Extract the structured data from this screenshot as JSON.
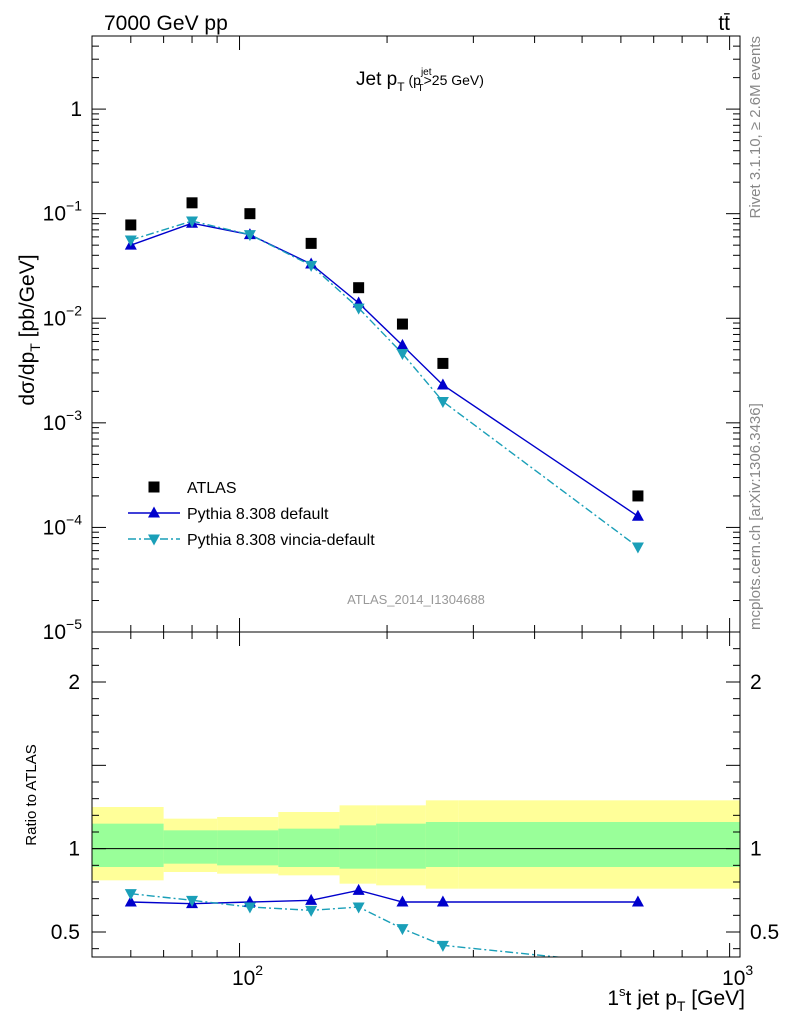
{
  "header": {
    "left": "7000 GeV pp",
    "right": "tt̄"
  },
  "side_labels": {
    "rivet": "Rivet 3.1.10, ≥ 2.6M events",
    "mcplots": "mcplots.cern.ch [arXiv:1306.3436]"
  },
  "chart_data": [
    {
      "type": "scatter",
      "panel": "main",
      "title": "Jet p_T (p_T^jet>25 GeV)",
      "ylabel": "dσ/dp_T [pb/GeV]",
      "xlabel": "",
      "xscale": "log",
      "yscale": "log",
      "xlim": [
        50,
        1050
      ],
      "ylim": [
        1e-05,
        5
      ],
      "y_tick_labels": [
        "10^-5",
        "10^-4",
        "10^-3",
        "10^-2",
        "10^-1",
        "1"
      ],
      "x": [
        60,
        80,
        105,
        140,
        175,
        215,
        260,
        650
      ],
      "series": [
        {
          "name": "ATLAS",
          "marker": "square",
          "color": "#000000",
          "line": "none",
          "values": [
            0.078,
            0.127,
            0.1,
            0.052,
            0.0196,
            0.0088,
            0.0037,
            0.0002
          ]
        },
        {
          "name": "Pythia 8.308 default",
          "marker": "triangle-up",
          "color": "#0000cc",
          "line": "solid",
          "values": [
            0.05,
            0.081,
            0.063,
            0.033,
            0.014,
            0.0055,
            0.0023,
            0.000128
          ]
        },
        {
          "name": "Pythia 8.308 vincia-default",
          "marker": "triangle-down",
          "color": "#1a9fb8",
          "line": "dashdot",
          "values": [
            0.056,
            0.085,
            0.063,
            0.032,
            0.0125,
            0.0046,
            0.0016,
            6.5e-05
          ]
        }
      ],
      "annotation": "ATLAS_2014_I1304688",
      "legend_position": "bottom-left"
    },
    {
      "type": "line",
      "panel": "ratio",
      "ylabel": "Ratio to ATLAS",
      "xlabel": "1st jet p_T [GeV]",
      "xscale": "log",
      "xlim": [
        50,
        1050
      ],
      "ylim": [
        0.35,
        2.3
      ],
      "y_tick_labels": [
        "0.5",
        "1",
        "2"
      ],
      "x_tick_labels": [
        "10^2",
        "10^3"
      ],
      "x": [
        60,
        80,
        105,
        140,
        175,
        215,
        260,
        650
      ],
      "bins": [
        [
          50,
          70
        ],
        [
          70,
          90
        ],
        [
          90,
          120
        ],
        [
          120,
          160
        ],
        [
          160,
          190
        ],
        [
          190,
          240
        ],
        [
          240,
          280
        ],
        [
          280,
          1050
        ]
      ],
      "band_yellow": [
        [
          0.81,
          1.25
        ],
        [
          0.86,
          1.18
        ],
        [
          0.85,
          1.19
        ],
        [
          0.84,
          1.22
        ],
        [
          0.79,
          1.26
        ],
        [
          0.78,
          1.26
        ],
        [
          0.76,
          1.29
        ],
        [
          0.76,
          1.29
        ]
      ],
      "band_green": [
        [
          0.89,
          1.15
        ],
        [
          0.91,
          1.11
        ],
        [
          0.9,
          1.11
        ],
        [
          0.89,
          1.12
        ],
        [
          0.88,
          1.14
        ],
        [
          0.88,
          1.15
        ],
        [
          0.89,
          1.16
        ],
        [
          0.89,
          1.16
        ]
      ],
      "series": [
        {
          "name": "Pythia 8.308 default",
          "color": "#0000cc",
          "marker": "triangle-up",
          "line": "solid",
          "values": [
            0.68,
            0.67,
            0.68,
            0.69,
            0.75,
            0.68,
            0.68,
            0.68
          ]
        },
        {
          "name": "Pythia 8.308 vincia-default",
          "color": "#1a9fb8",
          "marker": "triangle-down",
          "line": "dashdot",
          "values": [
            0.73,
            0.69,
            0.65,
            0.63,
            0.65,
            0.52,
            0.42,
            0.3
          ]
        }
      ]
    }
  ]
}
